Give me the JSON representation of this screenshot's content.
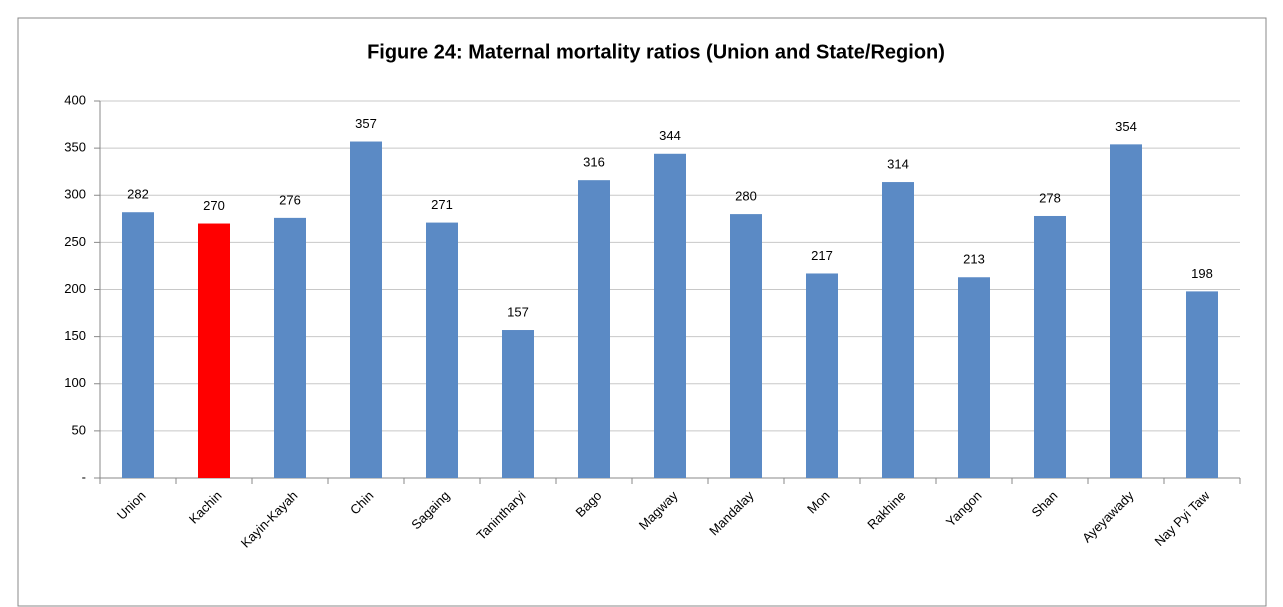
{
  "chart_data": {
    "type": "bar",
    "title": "Figure 24: Maternal mortality ratios (Union and State/Region)",
    "categories": [
      "Union",
      "Kachin",
      "Kayin-Kayah",
      "Chin",
      "Sagaing",
      "Tanintharyi",
      "Bago",
      "Magway",
      "Mandalay",
      "Mon",
      "Rakhine",
      "Yangon",
      "Shan",
      "Ayeyawady",
      "Nay Pyi Taw"
    ],
    "values": [
      282,
      270,
      276,
      357,
      271,
      157,
      316,
      344,
      280,
      217,
      314,
      213,
      278,
      354,
      198
    ],
    "colors": [
      "#5b8ac5",
      "#ff0000",
      "#5b8ac5",
      "#5b8ac5",
      "#5b8ac5",
      "#5b8ac5",
      "#5b8ac5",
      "#5b8ac5",
      "#5b8ac5",
      "#5b8ac5",
      "#5b8ac5",
      "#5b8ac5",
      "#5b8ac5",
      "#5b8ac5",
      "#5b8ac5"
    ],
    "ylim": [
      0,
      400
    ],
    "yticks": [
      {
        "value": 0,
        "label": "-"
      },
      50,
      100,
      150,
      200,
      250,
      300,
      350,
      400
    ],
    "grid": true
  }
}
